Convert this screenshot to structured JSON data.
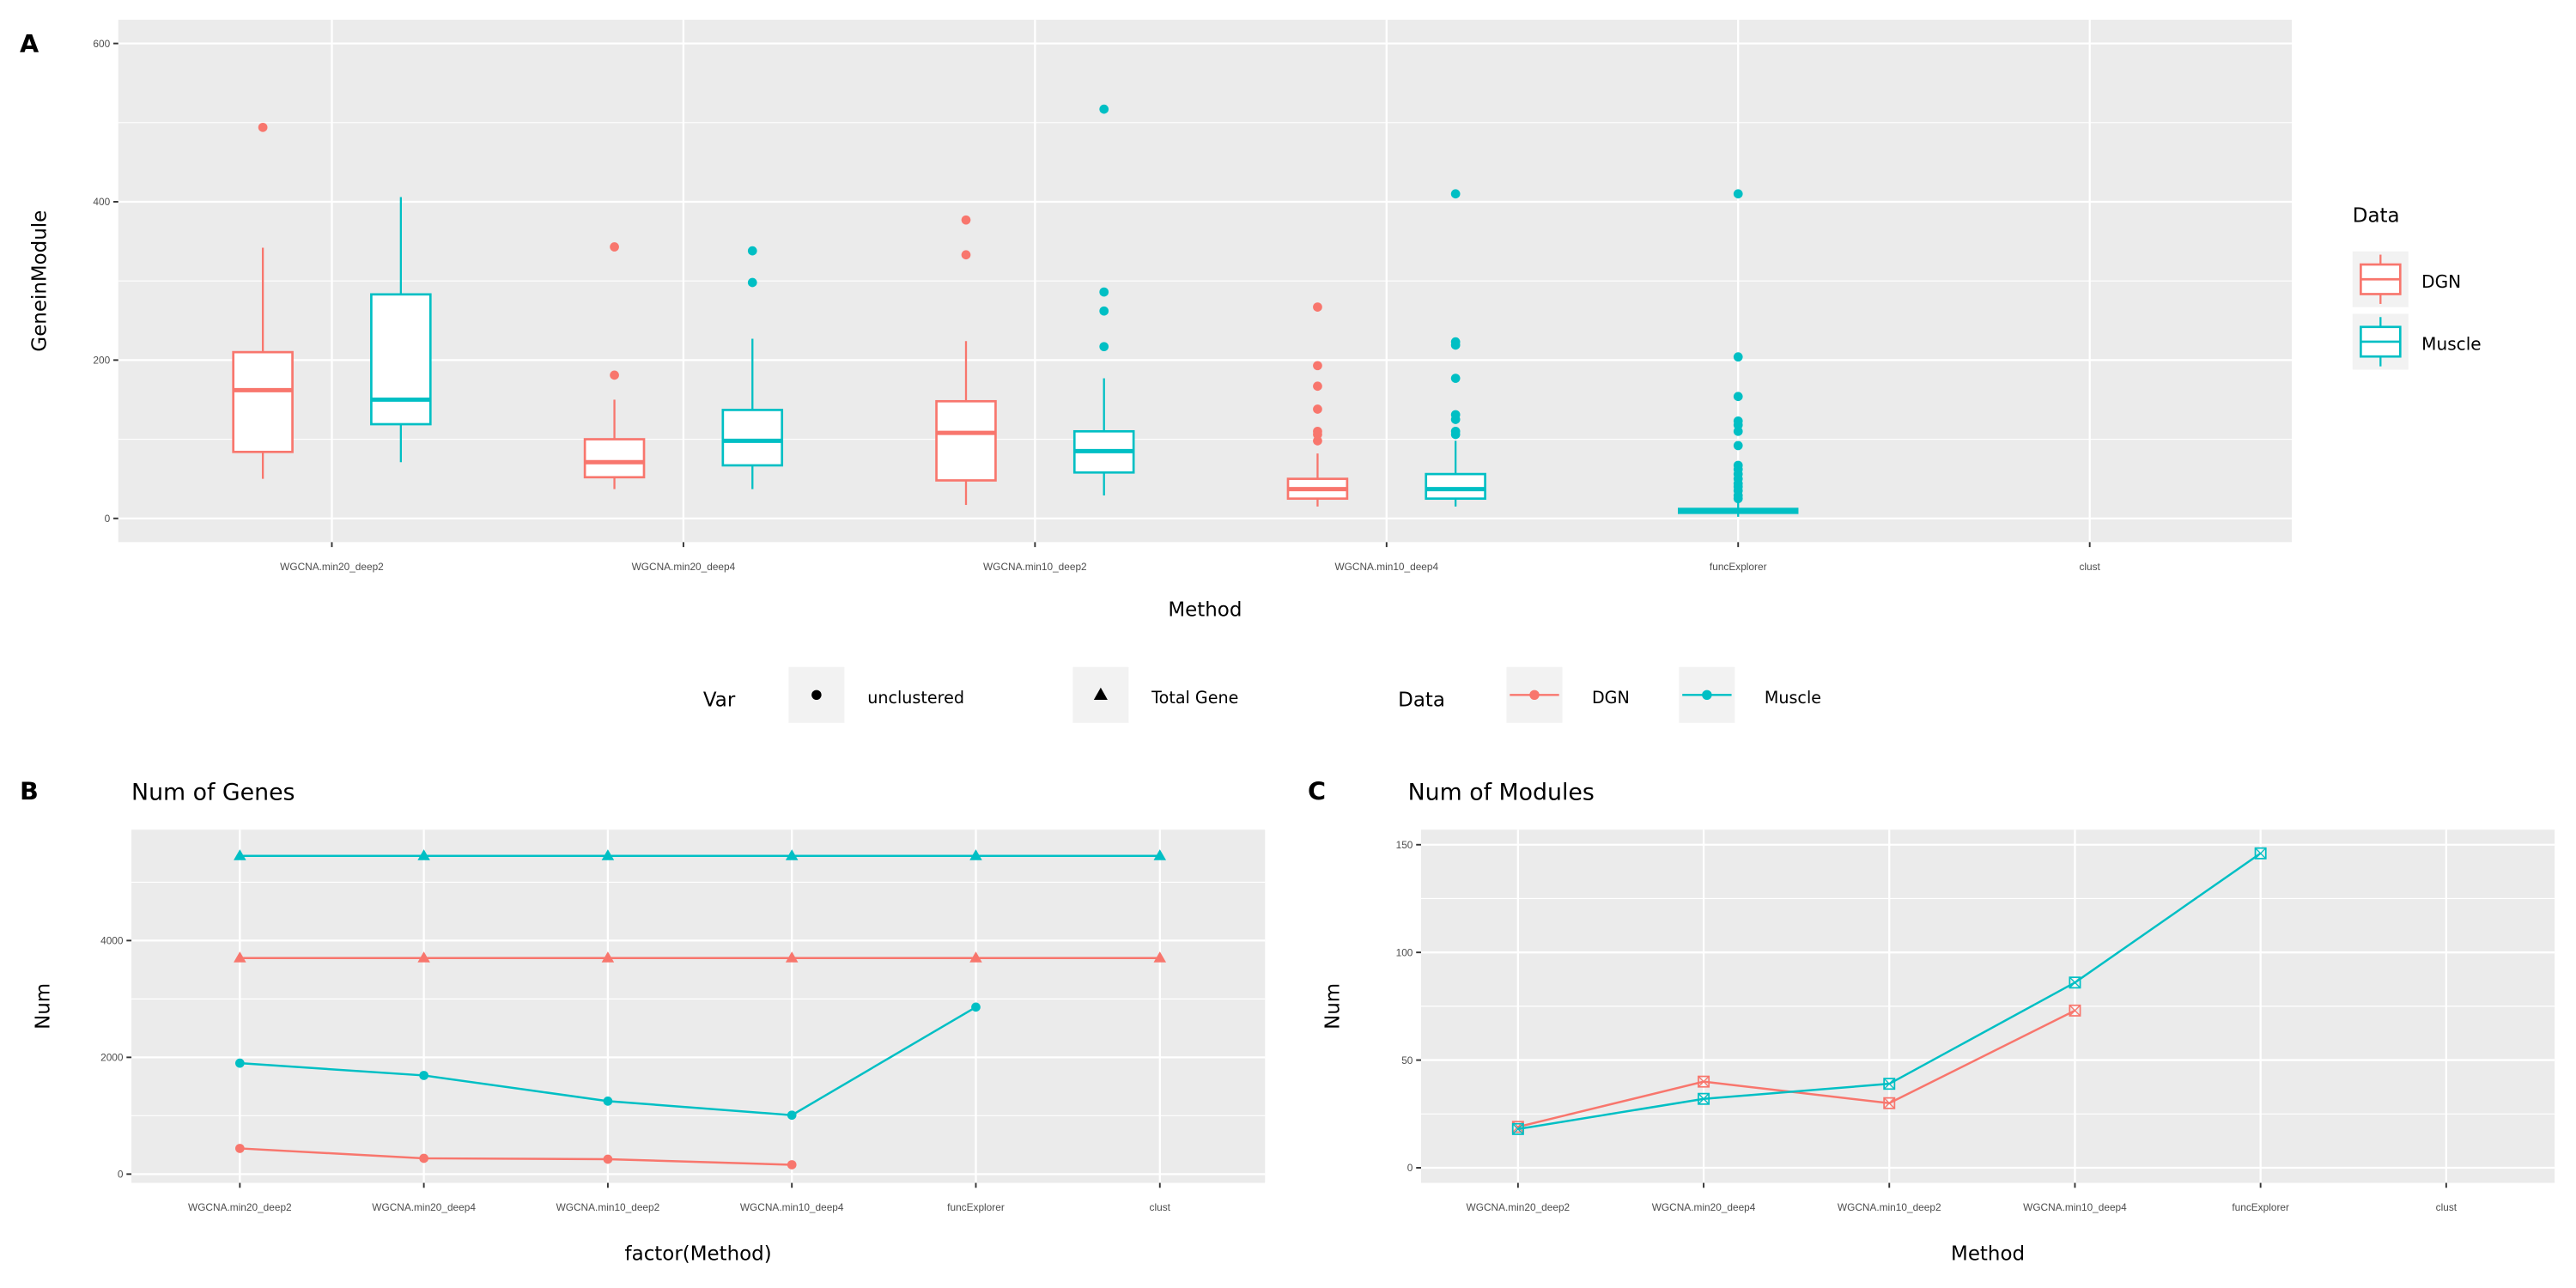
{
  "colors": {
    "DGN": "#F8766D",
    "Muscle": "#00BFC4",
    "panel_bg": "#EBEBEB",
    "grid": "#FFFFFF"
  },
  "legend_var": {
    "title": "Var",
    "items": [
      {
        "label": "unclustered",
        "shape": "circle"
      },
      {
        "label": "Total Gene",
        "shape": "triangle"
      }
    ]
  },
  "legend_data": {
    "title": "Data",
    "items": [
      "DGN",
      "Muscle"
    ]
  },
  "chart_data": [
    {
      "tag": "A",
      "type": "boxplot",
      "title": "",
      "xlabel": "Method",
      "ylabel": "GeneinModule",
      "ylim": [
        -30,
        630
      ],
      "yticks": [
        0,
        200,
        400,
        600
      ],
      "grid": true,
      "legend_position": "right",
      "legend": {
        "title": "Data",
        "items": [
          "DGN",
          "Muscle"
        ]
      },
      "categories": [
        "WGCNA.min20_deep2",
        "WGCNA.min20_deep4",
        "WGCNA.min10_deep2",
        "WGCNA.min10_deep4",
        "funcExplorer",
        "clust"
      ],
      "series": [
        {
          "name": "DGN",
          "boxes": [
            {
              "category": "WGCNA.min20_deep2",
              "low": 50,
              "q1": 84,
              "median": 162,
              "q3": 210,
              "high": 342,
              "outliers": [
                494
              ]
            },
            {
              "category": "WGCNA.min20_deep4",
              "low": 37,
              "q1": 52,
              "median": 71,
              "q3": 100,
              "high": 150,
              "outliers": [
                181,
                343
              ]
            },
            {
              "category": "WGCNA.min10_deep2",
              "low": 17,
              "q1": 48,
              "median": 108,
              "q3": 148,
              "high": 224,
              "outliers": [
                333,
                377
              ]
            },
            {
              "category": "WGCNA.min10_deep4",
              "low": 15,
              "q1": 25,
              "median": 37,
              "q3": 50,
              "high": 82,
              "outliers": [
                98,
                106,
                110,
                138,
                167,
                193,
                267
              ]
            }
          ]
        },
        {
          "name": "Muscle",
          "boxes": [
            {
              "category": "WGCNA.min20_deep2",
              "low": 71,
              "q1": 119,
              "median": 150,
              "q3": 283,
              "high": 406,
              "outliers": []
            },
            {
              "category": "WGCNA.min20_deep4",
              "low": 37,
              "q1": 67,
              "median": 98,
              "q3": 137,
              "high": 227,
              "outliers": [
                298,
                338
              ]
            },
            {
              "category": "WGCNA.min10_deep2",
              "low": 29,
              "q1": 58,
              "median": 85,
              "q3": 110,
              "high": 177,
              "outliers": [
                217,
                262,
                286,
                517
              ]
            },
            {
              "category": "WGCNA.min10_deep4",
              "low": 15,
              "q1": 25,
              "median": 37,
              "q3": 56,
              "high": 98,
              "outliers": [
                106,
                110,
                125,
                131,
                177,
                219,
                223,
                410
              ]
            },
            {
              "category": "funcExplorer",
              "low": 2,
              "q1": 7,
              "median": 10,
              "q3": 12,
              "high": 20,
              "outliers": [
                25,
                29,
                35,
                40,
                44,
                50,
                56,
                62,
                67,
                92,
                110,
                118,
                123,
                154,
                204,
                410
              ]
            }
          ]
        }
      ]
    },
    {
      "tag": "B",
      "type": "line",
      "title": "Num of Genes",
      "xlabel": "factor(Method)",
      "ylabel": "Num",
      "ylim": [
        -150,
        5900
      ],
      "yticks": [
        0,
        2000,
        4000
      ],
      "grid": true,
      "categories": [
        "WGCNA.min20_deep2",
        "WGCNA.min20_deep4",
        "WGCNA.min10_deep2",
        "WGCNA.min10_deep4",
        "funcExplorer",
        "clust"
      ],
      "series": [
        {
          "data": "Muscle",
          "var": "Total Gene",
          "values": [
            5450,
            5450,
            5450,
            5450,
            5450,
            5450
          ]
        },
        {
          "data": "DGN",
          "var": "Total Gene",
          "values": [
            3700,
            3700,
            3700,
            3700,
            3700,
            3700
          ]
        },
        {
          "data": "Muscle",
          "var": "unclustered",
          "values": [
            1900,
            1690,
            1250,
            1010,
            2860,
            null
          ]
        },
        {
          "data": "DGN",
          "var": "unclustered",
          "values": [
            440,
            270,
            255,
            160,
            null,
            null
          ]
        }
      ]
    },
    {
      "tag": "C",
      "type": "line",
      "title": "Num of Modules",
      "xlabel": "Method",
      "ylabel": "Num",
      "ylim": [
        -7,
        157
      ],
      "yticks": [
        0,
        50,
        100,
        150
      ],
      "grid": true,
      "categories": [
        "WGCNA.min20_deep2",
        "WGCNA.min20_deep4",
        "WGCNA.min10_deep2",
        "WGCNA.min10_deep4",
        "funcExplorer",
        "clust"
      ],
      "series": [
        {
          "data": "DGN",
          "values": [
            19,
            40,
            30,
            73,
            null,
            null
          ]
        },
        {
          "data": "Muscle",
          "values": [
            18,
            32,
            39,
            86,
            146,
            null
          ]
        }
      ]
    }
  ]
}
